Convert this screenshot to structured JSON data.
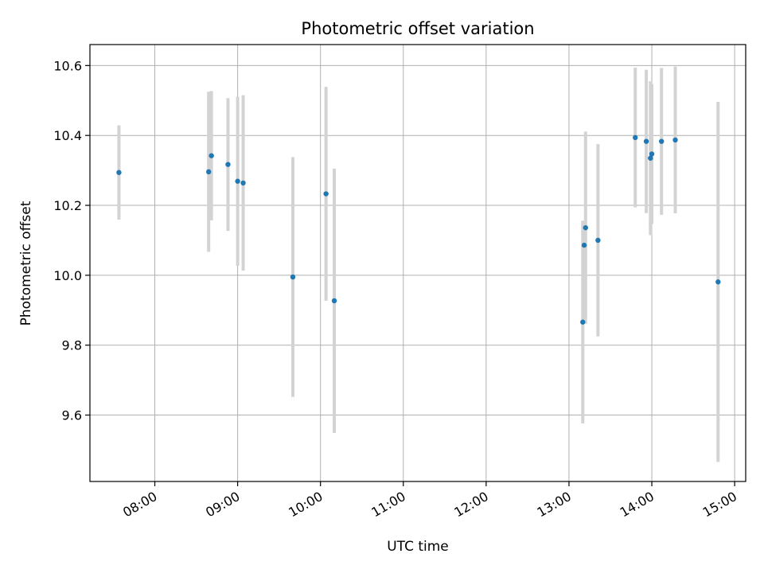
{
  "chart_data": {
    "type": "scatter",
    "title": "Photometric offset variation",
    "xlabel": "UTC time",
    "ylabel": "Photometric offset",
    "x_ticks": [
      "08:00",
      "09:00",
      "10:00",
      "11:00",
      "12:00",
      "13:00",
      "14:00",
      "15:00"
    ],
    "y_ticks": [
      "9.6",
      "9.8",
      "10.0",
      "10.2",
      "10.4",
      "10.6"
    ],
    "xlim": [
      "07:13",
      "15:08"
    ],
    "ylim": [
      9.41,
      10.66
    ],
    "grid": true,
    "colors": {
      "points": "#1f77b4",
      "errorbars": "#d3d3d3",
      "grid": "#b0b0b0"
    },
    "points": [
      {
        "t": "07:34",
        "y": 10.294,
        "err": 0.135
      },
      {
        "t": "08:39",
        "y": 10.296,
        "err": 0.229
      },
      {
        "t": "08:41",
        "y": 10.342,
        "err": 0.185
      },
      {
        "t": "08:53",
        "y": 10.317,
        "err": 0.19
      },
      {
        "t": "09:00",
        "y": 10.269,
        "err": 0.242
      },
      {
        "t": "09:04",
        "y": 10.264,
        "err": 0.251
      },
      {
        "t": "09:40",
        "y": 9.995,
        "err": 0.343
      },
      {
        "t": "10:04",
        "y": 10.233,
        "err": 0.306
      },
      {
        "t": "10:10",
        "y": 9.927,
        "err": 0.378
      },
      {
        "t": "13:10",
        "y": 9.866,
        "err": 0.29
      },
      {
        "t": "13:11",
        "y": 10.086,
        "err": 0.07
      },
      {
        "t": "13:12",
        "y": 10.136,
        "err": 0.275
      },
      {
        "t": "13:21",
        "y": 10.1,
        "err": 0.275
      },
      {
        "t": "13:48",
        "y": 10.394,
        "err": 0.2
      },
      {
        "t": "13:56",
        "y": 10.383,
        "err": 0.205
      },
      {
        "t": "13:59",
        "y": 10.335,
        "err": 0.22
      },
      {
        "t": "14:00",
        "y": 10.347,
        "err": 0.2
      },
      {
        "t": "14:07",
        "y": 10.383,
        "err": 0.21
      },
      {
        "t": "14:17",
        "y": 10.387,
        "err": 0.21
      },
      {
        "t": "14:48",
        "y": 9.981,
        "err": 0.515
      }
    ]
  }
}
